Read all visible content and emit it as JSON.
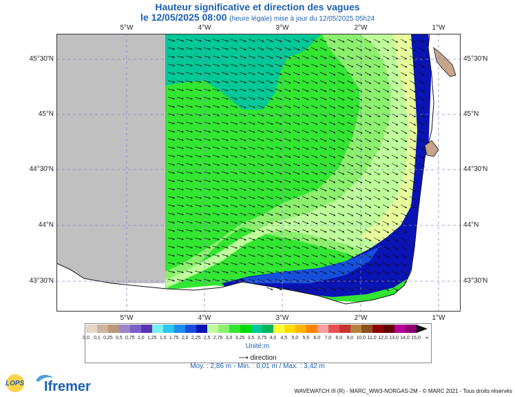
{
  "title": "Hauteur significative et direction des vagues",
  "subtitle_main": "le 12/05/2025 08:00",
  "subtitle_note": "(heure légale) mise à jour du 12/05/2025 05h24",
  "lon_ticks": [
    "5°W",
    "4°W",
    "3°W",
    "2°W",
    "1°W"
  ],
  "lat_ticks": [
    "45°30'N",
    "45°N",
    "44°30'N",
    "44°N",
    "43°30'N"
  ],
  "colorbar": {
    "labels": [
      "0,0",
      "0,1",
      "0,25",
      "0,5",
      "0,75",
      "1,0",
      "1,25",
      "1,5",
      "1,75",
      "2,0",
      "2,25",
      "2,5",
      "2,75",
      "3,0",
      "3,25",
      "3,5",
      "3,75",
      "4,0",
      "4,5",
      "5,0",
      "5,5",
      "6,0",
      "7,0",
      "8,0",
      "9,0",
      "10,0",
      "11,0",
      "12,0",
      "13,0",
      "14,0",
      "15,0",
      "∞"
    ],
    "colors": [
      "#e6d6c6",
      "#cdb49b",
      "#b89878",
      "#9b86c8",
      "#7b5fc8",
      "#5a32b4",
      "#78f0f0",
      "#28c8f0",
      "#1e8cf0",
      "#1450dc",
      "#0a14b4",
      "#beff9b",
      "#8cf06e",
      "#32e632",
      "#00dc00",
      "#00c896",
      "#00b45a",
      "#ffff32",
      "#ffdc00",
      "#ffb400",
      "#ff8200",
      "#ffa0a0",
      "#e65050",
      "#c83232",
      "#b4823c",
      "#8c501e",
      "#8c0000",
      "#640000",
      "#b40096",
      "#8c006e"
    ],
    "unit": "Unité:m"
  },
  "direction_label": "direction",
  "stats": "Moy. : 2,86 m   -   Min. : 0,01 m / Max. : 3,42 m",
  "footer": "WAVEWATCH III (R) - MARC_WW3-NORGAS-2M - © MARC 2021 - Tous droits réservés",
  "logo_lops": "LOPS",
  "logo_ifremer": "Ifremer",
  "map_colors": {
    "land_grey": "#c0c0c0",
    "land_brown": "#c8a58a",
    "zone_teal": "#00c896",
    "zone_green": "#32e632",
    "zone_lightgreen": "#8cf06e",
    "zone_yellowgreen": "#beff9b",
    "zone_pale": "#e6ff9b",
    "zone_blue": "#0a14b4",
    "zone_midblue": "#1450dc"
  }
}
